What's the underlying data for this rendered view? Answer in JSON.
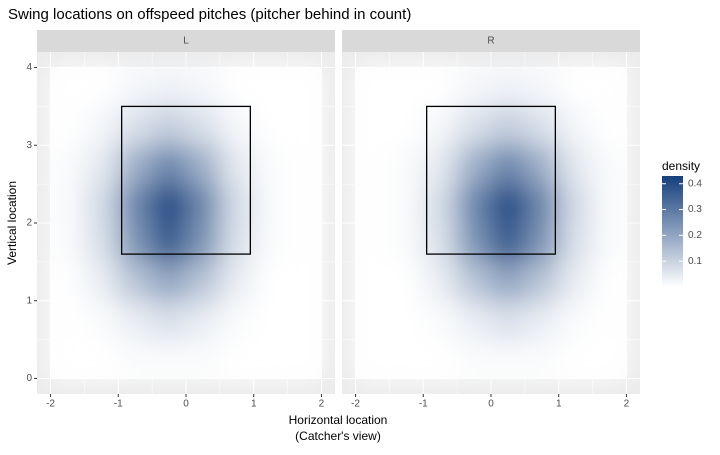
{
  "chart_data": {
    "type": "density_heatmap",
    "title": "Swing locations on offspeed pitches (pitcher behind in count)",
    "x_label": [
      "Horizontal location",
      "(Catcher's view)"
    ],
    "y_label": "Vertical location",
    "xlim": [
      -2.2,
      2.2
    ],
    "ylim": [
      -0.2,
      4.2
    ],
    "xticks": [
      -2,
      -1,
      0,
      1,
      2
    ],
    "yticks": [
      0,
      1,
      2,
      3,
      4
    ],
    "x": [
      -1.75,
      -1.25,
      -0.75,
      -0.25,
      0.25,
      0.75,
      1.25,
      1.75
    ],
    "y": [
      0.25,
      0.75,
      1.25,
      1.75,
      2.25,
      2.75,
      3.25,
      3.75
    ],
    "strike_zone": {
      "x": [
        -0.95,
        0.95
      ],
      "y": [
        1.6,
        3.5
      ]
    },
    "panels": [
      {
        "label": "L",
        "z": [
          [
            0,
            0,
            0.01,
            0.01,
            0.01,
            0,
            0,
            0
          ],
          [
            0,
            0.01,
            0.04,
            0.07,
            0.04,
            0.01,
            0,
            0
          ],
          [
            0,
            0.04,
            0.13,
            0.2,
            0.13,
            0.04,
            0,
            0
          ],
          [
            0.01,
            0.07,
            0.24,
            0.37,
            0.24,
            0.07,
            0.01,
            0
          ],
          [
            0.01,
            0.08,
            0.27,
            0.41,
            0.27,
            0.08,
            0.01,
            0
          ],
          [
            0.01,
            0.05,
            0.18,
            0.27,
            0.18,
            0.05,
            0.01,
            0
          ],
          [
            0,
            0.02,
            0.07,
            0.11,
            0.07,
            0.02,
            0,
            0
          ],
          [
            0,
            0,
            0.02,
            0.03,
            0.02,
            0,
            0,
            0
          ]
        ]
      },
      {
        "label": "R",
        "z": [
          [
            0,
            0,
            0,
            0.01,
            0.01,
            0.01,
            0,
            0
          ],
          [
            0,
            0,
            0.01,
            0.04,
            0.07,
            0.04,
            0.01,
            0
          ],
          [
            0,
            0,
            0.04,
            0.13,
            0.2,
            0.13,
            0.04,
            0
          ],
          [
            0,
            0.01,
            0.07,
            0.24,
            0.37,
            0.24,
            0.07,
            0.01
          ],
          [
            0,
            0.01,
            0.08,
            0.27,
            0.41,
            0.27,
            0.08,
            0.01
          ],
          [
            0,
            0.01,
            0.05,
            0.18,
            0.27,
            0.18,
            0.05,
            0.01
          ],
          [
            0,
            0,
            0.02,
            0.07,
            0.11,
            0.07,
            0.02,
            0
          ],
          [
            0,
            0,
            0,
            0.02,
            0.03,
            0.02,
            0,
            0
          ]
        ]
      }
    ],
    "legend": {
      "title": "density",
      "lim": [
        0,
        0.43
      ],
      "ticks": [
        0.1,
        0.2,
        0.3,
        0.4
      ]
    },
    "low_color": "#ffffff",
    "high_color": "#143f7c",
    "grid": true
  }
}
